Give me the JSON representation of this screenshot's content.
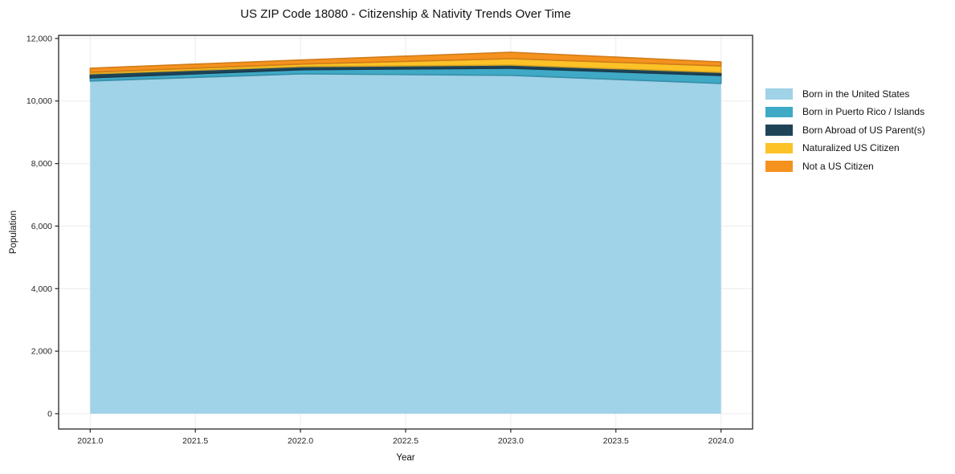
{
  "chart_data": {
    "type": "area",
    "stacked": true,
    "title": "US ZIP Code 18080 - Citizenship & Nativity Trends Over Time",
    "xlabel": "Year",
    "ylabel": "Population",
    "x": [
      2021,
      2022,
      2023,
      2024
    ],
    "series": [
      {
        "name": "Born in the United States",
        "color": "#a0d2e8",
        "values": [
          10640,
          10870,
          10820,
          10560
        ]
      },
      {
        "name": "Born in Puerto Rico / Islands",
        "color": "#3fa9c6",
        "values": [
          100,
          130,
          230,
          255
        ]
      },
      {
        "name": "Born Abroad of US Parent(s)",
        "color": "#1f4458",
        "values": [
          130,
          100,
          100,
          100
        ]
      },
      {
        "name": "Naturalized US Citizen",
        "color": "#fcc227",
        "values": [
          50,
          80,
          205,
          205
        ]
      },
      {
        "name": "Not a US Citizen",
        "color": "#f5921e",
        "values": [
          130,
          130,
          205,
          130
        ]
      }
    ],
    "xticks": [
      2021.0,
      2021.5,
      2022.0,
      2022.5,
      2023.0,
      2023.5,
      2024.0
    ],
    "yticks": [
      0,
      2000,
      4000,
      6000,
      8000,
      10000,
      12000
    ],
    "xlim": [
      2020.85,
      2024.15
    ],
    "ylim": [
      -490,
      12100
    ],
    "grid": true,
    "legend_position": "right-outside",
    "grid_color": "#ececec",
    "axis_color": "#262626"
  }
}
